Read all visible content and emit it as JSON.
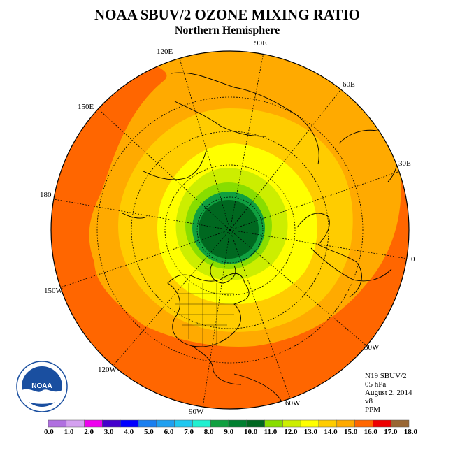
{
  "title": "NOAA SBUV/2 OZONE MIXING RATIO",
  "subtitle": "Northern Hemisphere",
  "longitude_labels": {
    "e90": "90E",
    "e120": "120E",
    "e60": "60E",
    "e150": "150E",
    "e30": "30E",
    "d180": "180",
    "d0": "0",
    "w150": "150W",
    "w30": "30W",
    "w120": "120W",
    "w60": "60W",
    "w90": "90W"
  },
  "info": {
    "satellite": "N19 SBUV/2",
    "pressure": "05 hPa",
    "date": "August 2, 2014",
    "version": "v8",
    "units": "PPM"
  },
  "logo_text": "NOAA",
  "colorbar": {
    "labels": [
      "0.0",
      "1.0",
      "2.0",
      "3.0",
      "4.0",
      "5.0",
      "6.0",
      "7.0",
      "8.0",
      "9.0",
      "10.0",
      "11.0",
      "12.0",
      "13.0",
      "14.0",
      "15.0",
      "16.0",
      "17.0",
      "18.0"
    ],
    "colors": [
      "#b070e0",
      "#d4a0f0",
      "#ee00ee",
      "#4400cc",
      "#0000ff",
      "#1a7ff0",
      "#20a0f0",
      "#20c8f0",
      "#20f0d0",
      "#10a040",
      "#008030",
      "#006820",
      "#88dd00",
      "#ccee00",
      "#ffff00",
      "#ffcc00",
      "#ffaa00",
      "#ff6600",
      "#ee0000",
      "#996633"
    ]
  },
  "map_colors": {
    "outer": "#ff6600",
    "band_15": "#ffaa00",
    "band_14": "#ffcc00",
    "band_13": "#ffff00",
    "band_12": "#ccee00",
    "band_11": "#88dd00",
    "band_10": "#10a040",
    "core": "#006820"
  }
}
